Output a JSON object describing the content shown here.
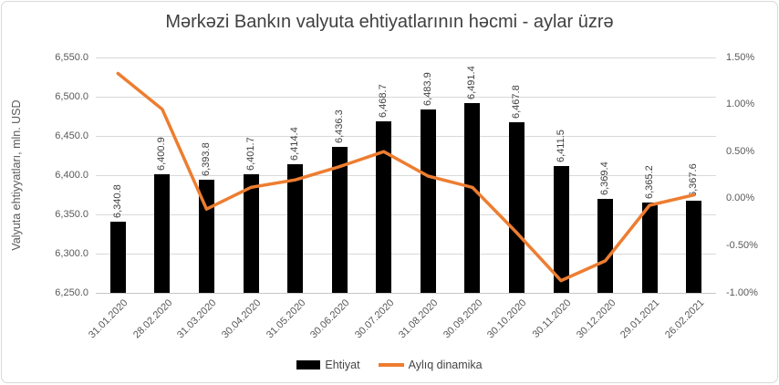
{
  "chart_data": {
    "type": "combo-bar-line",
    "title": "Mərkəzi Bankın valyuta ehtiyatlarının həcmi - aylar üzrə",
    "categories": [
      "31.01.2020",
      "28.02.2020",
      "31.03.2020",
      "30.04.2020",
      "31.05.2020",
      "30.06.2020",
      "30.07.2020",
      "31.08.2020",
      "30.09.2020",
      "30.10.2020",
      "30.11.2020",
      "30.12.2020",
      "29.01.2021",
      "26.02.2021"
    ],
    "series": [
      {
        "name": "Ehtiyat",
        "type": "bar",
        "axis": "left",
        "color": "#000000",
        "values": [
          6340.8,
          6400.9,
          6393.8,
          6401.7,
          6414.4,
          6436.3,
          6468.7,
          6483.9,
          6491.4,
          6467.8,
          6411.5,
          6369.4,
          6365.2,
          6367.6
        ],
        "data_labels": [
          "6,340.8",
          "6,400.9",
          "6,393.8",
          "6,401.7",
          "6,414.4",
          "6,436.3",
          "6,468.7",
          "6,483.9",
          "6,491.4",
          "6,467.8",
          "6,411.5",
          "6,369.4",
          "6,365.2",
          "6,367.6"
        ]
      },
      {
        "name": "Aylıq dinamika",
        "type": "line",
        "axis": "right",
        "color": "#ED7D31",
        "values": [
          1.33,
          0.95,
          -0.11,
          0.12,
          0.2,
          0.34,
          0.5,
          0.24,
          0.12,
          -0.36,
          -0.87,
          -0.66,
          -0.07,
          0.04
        ]
      }
    ],
    "left_axis": {
      "title": "Valyuta ehtiyyatları, mln. USD",
      "min": 6250,
      "max": 6550,
      "step": 50,
      "tick_values": [
        6550,
        6500,
        6450,
        6400,
        6350,
        6300,
        6250
      ],
      "tick_labels": [
        "6,550.0",
        "6,500.0",
        "6,450.0",
        "6,400.0",
        "6,350.0",
        "6,300.0",
        "6,250.0"
      ]
    },
    "right_axis": {
      "min": -1.0,
      "max": 1.5,
      "step": 0.5,
      "tick_values": [
        1.5,
        1.0,
        0.5,
        0.0,
        -0.5,
        -1.0
      ],
      "tick_labels": [
        "1.50%",
        "1.00%",
        "0.50%",
        "0.00%",
        "-0.50%",
        "-1.00%"
      ]
    },
    "legend": {
      "position": "bottom",
      "entries": [
        "Ehtiyat",
        "Aylıq dinamika"
      ]
    },
    "grid": "horizontal-on"
  },
  "colors": {
    "background": "#FFFFFF",
    "border": "#D9D9D9",
    "bar": "#000000",
    "line": "#ED7D31",
    "gridline": "#D9D9D9",
    "axis_line": "#C6C6C6",
    "tick_text": "#595959",
    "title_text": "#404040",
    "data_label_text": "#404040"
  }
}
